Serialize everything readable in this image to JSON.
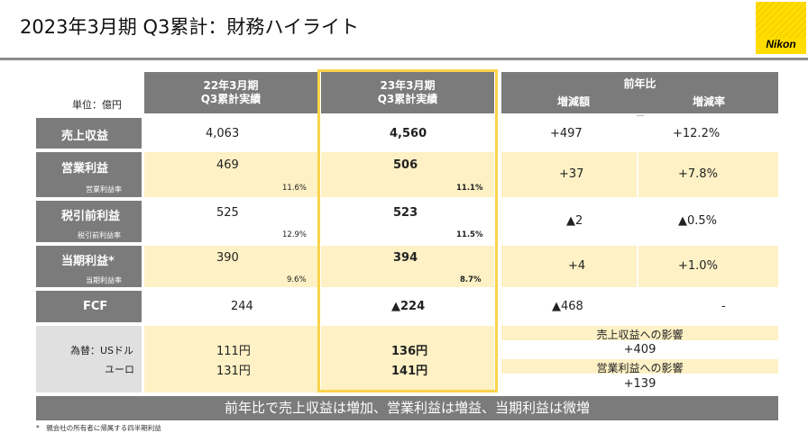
{
  "title": "2023年3月期 Q3累計：財務ハイライト",
  "logo": "Nikon",
  "unit": "単位：億円",
  "headers": {
    "prev": [
      "22年3月期",
      "Q3累計実績"
    ],
    "curr": [
      "23年3月期",
      "Q3累計実績"
    ],
    "yoy": "前年比",
    "diff": "増減額",
    "rate": "増減率"
  },
  "rows": {
    "revenue": {
      "label": "売上収益",
      "prev": "4,063",
      "curr": "4,560",
      "diff": "+497",
      "rate": "+12.2%"
    },
    "op": {
      "label": "営業利益",
      "sub": "営業利益率",
      "prev": "469",
      "prev_ratio": "11.6%",
      "curr": "506",
      "curr_ratio": "11.1%",
      "diff": "+37",
      "rate": "+7.8%"
    },
    "pretax": {
      "label": "税引前利益",
      "sub": "税引前利益率",
      "prev": "525",
      "prev_ratio": "12.9%",
      "curr": "523",
      "curr_ratio": "11.5%",
      "diff": "▲2",
      "rate": "▲0.5%"
    },
    "net": {
      "label": "当期利益*",
      "sub": "当期利益率",
      "prev": "390",
      "prev_ratio": "9.6%",
      "curr": "394",
      "curr_ratio": "8.7%",
      "diff": "+4",
      "rate": "+1.0%"
    },
    "fcf": {
      "label": "FCF",
      "prev": "244",
      "curr": "▲224",
      "diff": "▲468",
      "rate": "-"
    },
    "fx": {
      "label1": "為替：USドル",
      "label2": "ユーロ",
      "prev1": "111円",
      "prev2": "131円",
      "curr1": "136円",
      "curr2": "141円",
      "impact_rev_label": "売上収益への影響",
      "impact_rev": "+409",
      "impact_op_label": "営業利益への影響",
      "impact_op": "+139"
    }
  },
  "summary": "前年比で売上収益は増加、営業利益は増益、当期利益は微増",
  "footnote": "*　親会社の所有者に帰属する四半期利益"
}
